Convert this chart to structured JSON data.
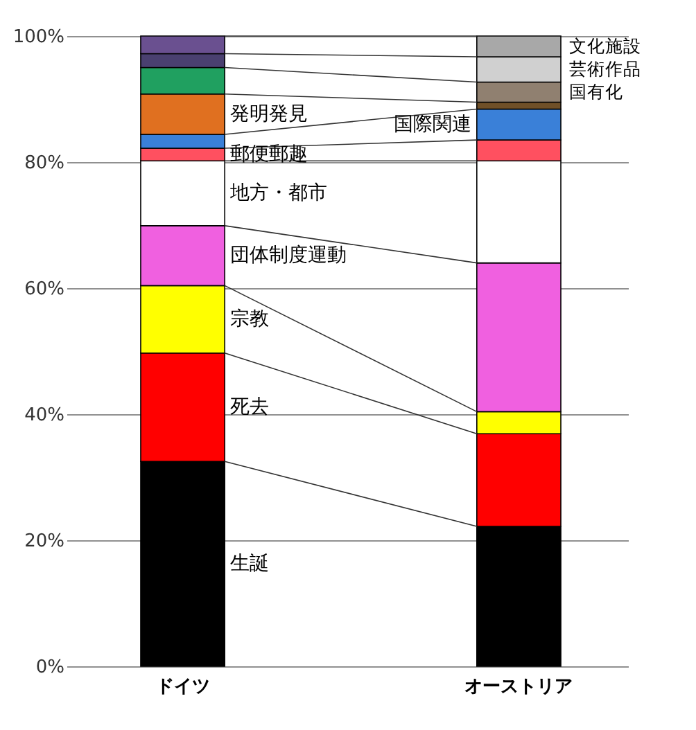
{
  "chart_data": {
    "type": "bar",
    "stacked": true,
    "categories": [
      "ドイツ",
      "オーストリア"
    ],
    "ylim": [
      0,
      100
    ],
    "yticks": [
      {
        "value": 0,
        "label": "0%"
      },
      {
        "value": 20,
        "label": "20%"
      },
      {
        "value": 40,
        "label": "40%"
      },
      {
        "value": 60,
        "label": "60%"
      },
      {
        "value": 80,
        "label": "80%"
      },
      {
        "value": 100,
        "label": "100%"
      }
    ],
    "grid": "y",
    "series": [
      {
        "name": "生誕",
        "color": "#000000",
        "values": [
          32.5,
          22.2
        ]
      },
      {
        "name": "死去",
        "color": "#ff0000",
        "values": [
          17.2,
          14.7
        ]
      },
      {
        "name": "宗教",
        "color": "#ffff00",
        "values": [
          10.7,
          3.5
        ]
      },
      {
        "name": "団体制度運動",
        "color": "#f060e0",
        "values": [
          9.5,
          23.6
        ]
      },
      {
        "name": "地方・都市",
        "color": "#ffffff",
        "values": [
          10.3,
          16.2
        ]
      },
      {
        "name": "郵便郵趣",
        "color": "#ff5060",
        "values": [
          2.0,
          3.3
        ]
      },
      {
        "name": "国際関連",
        "color": "#3a80d8",
        "values": [
          2.2,
          4.9
        ]
      },
      {
        "name": "発明発見",
        "colors": [
          "#e07020",
          "#705028"
        ],
        "values": [
          6.4,
          1.1
        ]
      },
      {
        "name": "国有化",
        "colors": [
          "#20a060",
          "#908070"
        ],
        "values": [
          4.2,
          3.2
        ]
      },
      {
        "name": "芸術作品",
        "colors": [
          "#4a4070",
          "#d0d0d0"
        ],
        "values": [
          2.2,
          4.0
        ]
      },
      {
        "name": "文化施設",
        "colors": [
          "#6a5090",
          "#a8a8a8"
        ],
        "values": [
          2.8,
          3.3
        ]
      }
    ]
  }
}
